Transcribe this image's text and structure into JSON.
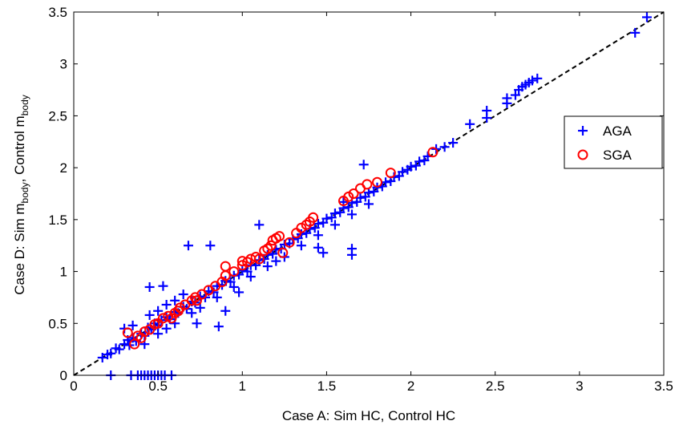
{
  "chart_data": {
    "type": "scatter",
    "xlabel": "Case A: Sim HC, Control HC",
    "ylabel": {
      "prefix": "Case D: Sim m",
      "sub1": "body",
      "mid": ", Control m",
      "sub2": "body"
    },
    "xlim": [
      0,
      3.5
    ],
    "ylim": [
      0,
      3.5
    ],
    "xticks": [
      "0",
      "0.5",
      "1",
      "1.5",
      "2",
      "2.5",
      "3",
      "3.5"
    ],
    "yticks": [
      "0",
      "0.5",
      "1",
      "1.5",
      "2",
      "2.5",
      "3",
      "3.5"
    ],
    "grid": false,
    "legend_position": "right",
    "reference_line": {
      "style": "dashed",
      "color": "#000000",
      "from": [
        0,
        0
      ],
      "to": [
        3.5,
        3.5
      ]
    },
    "series": [
      {
        "name": "AGA",
        "marker": "plus",
        "color": "#0000ff",
        "points": [
          [
            0.17,
            0.17
          ],
          [
            0.2,
            0.2
          ],
          [
            0.22,
            0.21
          ],
          [
            0.25,
            0.26
          ],
          [
            0.27,
            0.25
          ],
          [
            0.3,
            0.3
          ],
          [
            0.32,
            0.34
          ],
          [
            0.33,
            0.29
          ],
          [
            0.35,
            0.36
          ],
          [
            0.37,
            0.33
          ],
          [
            0.4,
            0.4
          ],
          [
            0.42,
            0.38
          ],
          [
            0.44,
            0.46
          ],
          [
            0.46,
            0.44
          ],
          [
            0.48,
            0.5
          ],
          [
            0.5,
            0.48
          ],
          [
            0.52,
            0.53
          ],
          [
            0.55,
            0.56
          ],
          [
            0.57,
            0.54
          ],
          [
            0.6,
            0.61
          ],
          [
            0.62,
            0.6
          ],
          [
            0.65,
            0.66
          ],
          [
            0.67,
            0.64
          ],
          [
            0.7,
            0.71
          ],
          [
            0.72,
            0.7
          ],
          [
            0.75,
            0.76
          ],
          [
            0.78,
            0.75
          ],
          [
            0.8,
            0.81
          ],
          [
            0.83,
            0.8
          ],
          [
            0.85,
            0.86
          ],
          [
            0.88,
            0.87
          ],
          [
            0.9,
            0.91
          ],
          [
            0.93,
            0.9
          ],
          [
            0.95,
            0.96
          ],
          [
            0.98,
            0.97
          ],
          [
            1.0,
            1.01
          ],
          [
            1.03,
            1.0
          ],
          [
            1.05,
            1.06
          ],
          [
            1.08,
            1.06
          ],
          [
            1.1,
            1.11
          ],
          [
            1.13,
            1.12
          ],
          [
            1.15,
            1.16
          ],
          [
            1.18,
            1.17
          ],
          [
            1.2,
            1.21
          ],
          [
            1.23,
            1.22
          ],
          [
            1.25,
            1.26
          ],
          [
            1.28,
            1.27
          ],
          [
            1.3,
            1.31
          ],
          [
            1.33,
            1.32
          ],
          [
            1.35,
            1.36
          ],
          [
            1.38,
            1.37
          ],
          [
            1.4,
            1.41
          ],
          [
            1.43,
            1.42
          ],
          [
            1.45,
            1.46
          ],
          [
            1.48,
            1.47
          ],
          [
            1.5,
            1.51
          ],
          [
            1.53,
            1.52
          ],
          [
            1.55,
            1.56
          ],
          [
            1.58,
            1.57
          ],
          [
            1.6,
            1.61
          ],
          [
            1.63,
            1.62
          ],
          [
            1.65,
            1.66
          ],
          [
            1.68,
            1.67
          ],
          [
            1.7,
            1.71
          ],
          [
            1.73,
            1.72
          ],
          [
            1.75,
            1.76
          ],
          [
            1.78,
            1.77
          ],
          [
            1.8,
            1.81
          ],
          [
            1.83,
            1.82
          ],
          [
            1.85,
            1.86
          ],
          [
            1.88,
            1.87
          ],
          [
            1.9,
            1.91
          ],
          [
            1.93,
            1.92
          ],
          [
            1.95,
            1.96
          ],
          [
            1.98,
            1.98
          ],
          [
            2.0,
            2.01
          ],
          [
            2.03,
            2.02
          ],
          [
            2.05,
            2.06
          ],
          [
            2.08,
            2.07
          ],
          [
            2.1,
            2.11
          ],
          [
            0.3,
            0.45
          ],
          [
            0.35,
            0.48
          ],
          [
            0.45,
            0.58
          ],
          [
            0.5,
            0.62
          ],
          [
            0.55,
            0.68
          ],
          [
            0.6,
            0.72
          ],
          [
            0.65,
            0.78
          ],
          [
            0.42,
            0.3
          ],
          [
            0.5,
            0.4
          ],
          [
            0.55,
            0.45
          ],
          [
            0.6,
            0.5
          ],
          [
            0.7,
            0.6
          ],
          [
            0.75,
            0.65
          ],
          [
            0.85,
            0.75
          ],
          [
            0.95,
            0.85
          ],
          [
            1.05,
            0.95
          ],
          [
            1.15,
            1.05
          ],
          [
            1.25,
            1.14
          ],
          [
            1.35,
            1.25
          ],
          [
            1.45,
            1.35
          ],
          [
            1.55,
            1.45
          ],
          [
            1.65,
            1.55
          ],
          [
            1.75,
            1.65
          ],
          [
            0.45,
            0.85
          ],
          [
            0.53,
            0.86
          ],
          [
            0.68,
            1.25
          ],
          [
            0.81,
            1.25
          ],
          [
            0.86,
            0.47
          ],
          [
            0.73,
            0.5
          ],
          [
            1.65,
            1.22
          ],
          [
            1.65,
            1.16
          ],
          [
            1.45,
            1.23
          ],
          [
            1.48,
            1.18
          ],
          [
            1.72,
            2.03
          ],
          [
            1.6,
            1.67
          ],
          [
            1.1,
            1.45
          ],
          [
            1.2,
            1.1
          ],
          [
            0.9,
            0.62
          ],
          [
            0.98,
            0.8
          ],
          [
            0.22,
            0.0
          ],
          [
            0.34,
            0.0
          ],
          [
            0.38,
            0.0
          ],
          [
            0.4,
            0.0
          ],
          [
            0.42,
            0.0
          ],
          [
            0.44,
            0.0
          ],
          [
            0.46,
            0.0
          ],
          [
            0.48,
            0.0
          ],
          [
            0.5,
            0.0
          ],
          [
            0.52,
            0.0
          ],
          [
            0.54,
            0.0
          ],
          [
            0.58,
            0.0
          ],
          [
            2.15,
            2.18
          ],
          [
            2.2,
            2.2
          ],
          [
            2.25,
            2.24
          ],
          [
            2.35,
            2.42
          ],
          [
            2.45,
            2.55
          ],
          [
            2.45,
            2.48
          ],
          [
            2.57,
            2.62
          ],
          [
            2.57,
            2.67
          ],
          [
            2.62,
            2.7
          ],
          [
            2.64,
            2.75
          ],
          [
            2.66,
            2.78
          ],
          [
            2.68,
            2.8
          ],
          [
            2.7,
            2.82
          ],
          [
            2.72,
            2.84
          ],
          [
            2.75,
            2.86
          ],
          [
            3.33,
            3.3
          ],
          [
            3.4,
            3.45
          ]
        ]
      },
      {
        "name": "SGA",
        "marker": "circle",
        "color": "#ff0000",
        "points": [
          [
            0.32,
            0.41
          ],
          [
            0.36,
            0.3
          ],
          [
            0.38,
            0.38
          ],
          [
            0.4,
            0.36
          ],
          [
            0.42,
            0.42
          ],
          [
            0.45,
            0.44
          ],
          [
            0.48,
            0.49
          ],
          [
            0.5,
            0.5
          ],
          [
            0.53,
            0.55
          ],
          [
            0.56,
            0.57
          ],
          [
            0.6,
            0.6
          ],
          [
            0.63,
            0.65
          ],
          [
            0.66,
            0.68
          ],
          [
            0.7,
            0.72
          ],
          [
            0.73,
            0.72
          ],
          [
            0.76,
            0.78
          ],
          [
            0.8,
            0.82
          ],
          [
            0.84,
            0.86
          ],
          [
            0.88,
            0.9
          ],
          [
            0.9,
            0.96
          ],
          [
            0.9,
            1.05
          ],
          [
            0.95,
            1.0
          ],
          [
            1.0,
            1.06
          ],
          [
            1.03,
            1.09
          ],
          [
            1.05,
            1.12
          ],
          [
            1.08,
            1.14
          ],
          [
            1.1,
            1.12
          ],
          [
            1.13,
            1.2
          ],
          [
            1.15,
            1.22
          ],
          [
            1.17,
            1.25
          ],
          [
            1.18,
            1.3
          ],
          [
            1.2,
            1.32
          ],
          [
            1.22,
            1.34
          ],
          [
            1.24,
            1.18
          ],
          [
            1.28,
            1.28
          ],
          [
            1.32,
            1.37
          ],
          [
            1.35,
            1.42
          ],
          [
            1.38,
            1.45
          ],
          [
            1.42,
            1.52
          ],
          [
            1.4,
            1.48
          ],
          [
            1.6,
            1.68
          ],
          [
            1.63,
            1.72
          ],
          [
            1.66,
            1.75
          ],
          [
            1.7,
            1.8
          ],
          [
            1.74,
            1.84
          ],
          [
            1.8,
            1.86
          ],
          [
            1.88,
            1.95
          ],
          [
            2.13,
            2.15
          ],
          [
            0.58,
            0.55
          ],
          [
            0.62,
            0.62
          ],
          [
            0.72,
            0.75
          ],
          [
            1.0,
            1.1
          ]
        ]
      }
    ]
  }
}
